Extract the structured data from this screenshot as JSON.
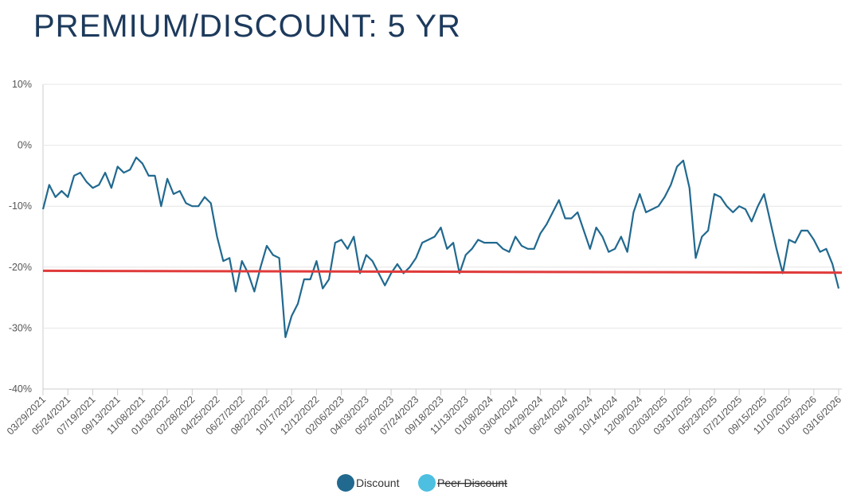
{
  "chart_data": {
    "type": "line",
    "title": "PREMIUM/DISCOUNT: 5 YR",
    "categories": [
      "03/29/2021",
      null,
      null,
      null,
      "05/24/2021",
      null,
      null,
      null,
      "07/19/2021",
      null,
      null,
      null,
      "09/13/2021",
      null,
      null,
      null,
      "11/08/2021",
      null,
      null,
      null,
      "01/03/2022",
      null,
      null,
      null,
      "02/28/2022",
      null,
      null,
      null,
      "04/25/2022",
      null,
      null,
      null,
      "06/27/2022",
      null,
      null,
      null,
      "08/22/2022",
      null,
      null,
      null,
      "10/17/2022",
      null,
      null,
      null,
      "12/12/2022",
      null,
      null,
      null,
      "02/06/2023",
      null,
      null,
      null,
      "04/03/2023",
      null,
      null,
      null,
      "05/26/2023",
      null,
      null,
      null,
      "07/24/2023",
      null,
      null,
      null,
      "09/18/2023",
      null,
      null,
      null,
      "11/13/2023",
      null,
      null,
      null,
      "01/08/2024",
      null,
      null,
      null,
      "03/04/2024",
      null,
      null,
      null,
      "04/29/2024",
      null,
      null,
      null,
      "06/24/2024",
      null,
      null,
      null,
      "08/19/2024",
      null,
      null,
      null,
      "10/14/2024",
      null,
      null,
      null,
      "12/09/2024",
      null,
      null,
      null,
      "02/03/2025",
      null,
      null,
      null,
      "03/31/2025",
      null,
      null,
      null,
      "05/23/2025",
      null,
      null,
      null,
      "07/21/2025",
      null,
      null,
      null,
      "09/15/2025",
      null,
      null,
      null,
      "11/10/2025",
      null,
      null,
      null,
      "01/05/2026",
      null,
      null,
      null,
      "03/16/2026"
    ],
    "series": [
      {
        "name": "Discount",
        "color": "#21698f",
        "values": [
          -10.5,
          -6.5,
          -8.5,
          -7.5,
          -8.5,
          -5,
          -4.5,
          -6,
          -7,
          -6.5,
          -4.5,
          -7,
          -3.5,
          -4.5,
          -4,
          -2,
          -3,
          -5,
          -5,
          -10,
          -5.5,
          -8,
          -7.5,
          -9.5,
          -10,
          -10,
          -8.5,
          -9.5,
          -15,
          -19,
          -18.5,
          -24,
          -19,
          -21,
          -24,
          -20,
          -16.5,
          -18,
          -18.5,
          -31.5,
          -28,
          -26,
          -22,
          -22,
          -19,
          -23.5,
          -22,
          -16,
          -15.5,
          -17,
          -15,
          -21,
          -18,
          -19,
          -21,
          -23,
          -21,
          -19.5,
          -21,
          -20,
          -18.5,
          -16,
          -15.5,
          -15,
          -13.5,
          -17,
          -16,
          -21,
          -18,
          -17,
          -15.5,
          -16,
          -16,
          -16,
          -17,
          -17.5,
          -15,
          -16.5,
          -17,
          -17,
          -14.5,
          -13,
          -11,
          -9,
          -12,
          -12,
          -11,
          -14,
          -17,
          -13.5,
          -15,
          -17.5,
          -17,
          -15,
          -17.5,
          -11,
          -8,
          -11,
          -10.5,
          -10,
          -8.5,
          -6.5,
          -3.5,
          -2.5,
          -7,
          -18.5,
          -15,
          -14,
          -8,
          -8.5,
          -10,
          -11,
          -10,
          -10.5,
          -12.5,
          -10,
          -8,
          -12.5,
          -17,
          -21,
          -15.5,
          -16,
          -14,
          -14,
          -15.5,
          -17.5,
          -17,
          -19.5,
          -23.5
        ]
      }
    ],
    "legend": [
      {
        "name": "Discount",
        "color": "#21698f"
      },
      {
        "name": "Peer Discount",
        "color": "#4dbfe0",
        "hidden": true
      }
    ],
    "reference_line": {
      "color": "#e03a3a",
      "values": [
        -20.6,
        -20.9
      ]
    },
    "ylim": [
      -40,
      10
    ],
    "yticks": [
      {
        "value": -40,
        "label": "-40%"
      },
      {
        "value": -30,
        "label": "-30%"
      },
      {
        "value": -20,
        "label": "-20%"
      },
      {
        "value": -10,
        "label": "-10%"
      },
      {
        "value": 0,
        "label": "0%"
      },
      {
        "value": 10,
        "label": "10%"
      }
    ],
    "grid": true
  }
}
